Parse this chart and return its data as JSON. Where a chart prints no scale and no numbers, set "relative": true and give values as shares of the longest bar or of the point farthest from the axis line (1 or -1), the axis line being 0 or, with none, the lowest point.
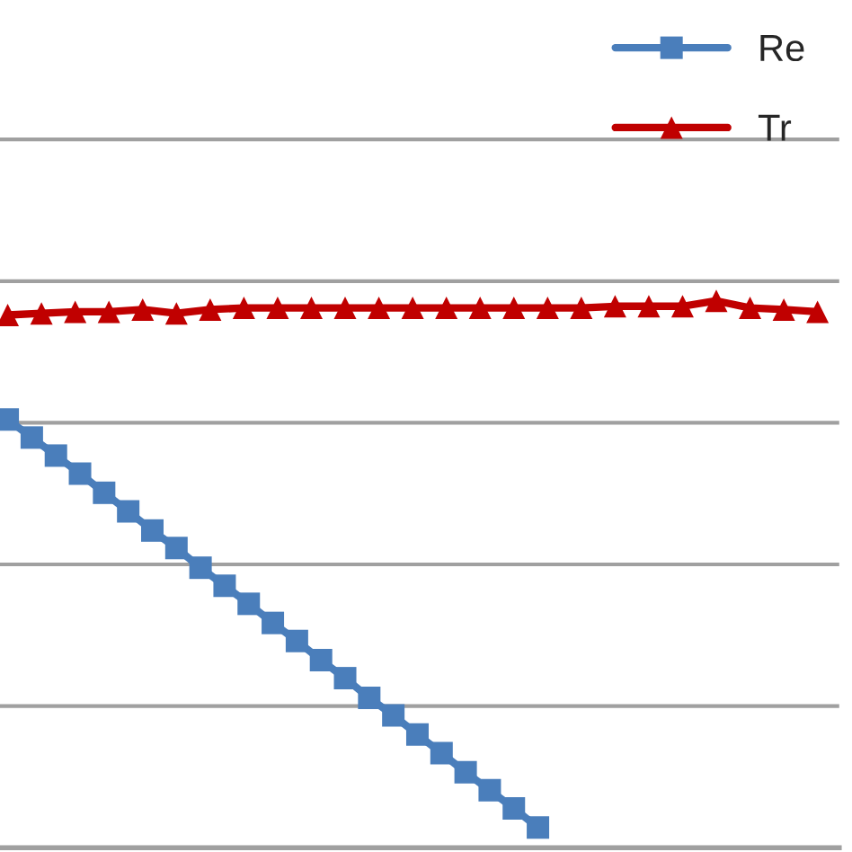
{
  "chart_data": {
    "type": "line",
    "relative": true,
    "grid": "y",
    "legend": "top right",
    "categories": [
      null,
      null,
      null,
      null,
      null,
      null,
      null,
      null,
      null,
      null,
      null,
      null,
      null,
      null,
      null,
      null,
      null,
      null,
      null,
      null,
      null,
      null,
      null,
      null,
      null,
      null,
      null,
      null,
      null,
      null,
      null,
      null,
      null,
      null,
      null,
      null,
      null,
      null,
      null,
      null,
      null,
      null,
      null,
      null,
      null,
      null,
      null,
      null,
      null,
      null,
      null,
      null,
      null,
      null,
      null,
      null,
      null,
      null,
      null,
      null,
      null,
      null,
      null,
      null,
      null,
      null,
      null,
      null,
      null,
      null,
      null,
      null,
      null,
      null,
      null,
      null,
      null,
      null,
      null,
      null,
      null,
      null,
      null,
      null,
      null,
      null,
      null,
      null,
      null,
      null,
      null,
      null,
      null,
      null,
      null,
      null,
      null,
      null,
      null,
      null,
      null,
      null,
      null,
      null,
      null,
      null,
      null,
      null,
      null,
      null,
      null,
      null,
      null,
      null,
      null,
      null,
      null,
      null,
      null,
      null,
      null,
      null,
      null,
      null,
      null,
      null,
      null,
      null,
      null,
      null,
      null,
      null,
      null,
      null,
      null,
      null,
      null,
      null,
      null,
      null,
      null,
      null,
      null,
      null,
      null,
      null,
      null,
      null,
      null,
      null,
      null,
      null,
      null,
      null,
      null,
      null,
      null,
      null,
      null,
      null,
      null,
      null,
      null,
      null,
      null,
      null,
      null,
      null,
      null
    ],
    "series": [
      {
        "name": "Re",
        "color": "#4a7ebb",
        "marker": "square",
        "values": [
          0.783,
          null,
          null,
          null,
          null,
          0.75,
          null,
          null,
          null,
          null,
          0.717,
          null,
          null,
          null,
          null,
          0.684,
          null,
          null,
          null,
          null,
          0.649,
          null,
          null,
          null,
          null,
          0.615,
          null,
          null,
          null,
          null,
          0.58,
          null,
          null,
          null,
          null,
          0.548,
          null,
          null,
          null,
          null,
          0.512,
          null,
          null,
          null,
          null,
          0.479,
          null,
          null,
          null,
          null,
          0.446,
          null,
          null,
          null,
          null,
          0.411,
          null,
          null,
          null,
          null,
          0.378,
          null,
          null,
          null,
          null,
          0.343,
          null,
          null,
          null,
          null,
          0.31,
          null,
          null,
          null,
          null,
          0.274,
          null,
          null,
          null,
          null,
          0.242,
          null,
          null,
          null,
          null,
          0.207,
          null,
          null,
          null,
          null,
          0.173,
          null,
          null,
          null,
          null,
          0.138,
          null,
          null,
          null,
          null,
          0.105,
          null,
          null,
          null,
          null,
          0.072,
          null,
          null,
          null,
          null,
          0.037,
          null,
          null,
          null,
          null,
          null,
          null,
          null,
          null,
          null,
          null,
          null,
          null,
          null,
          null,
          null,
          null,
          null,
          null,
          null,
          null,
          null,
          null,
          null,
          null,
          null,
          null,
          null,
          null,
          null,
          null,
          null,
          null,
          null,
          null,
          null,
          null,
          null,
          null,
          null,
          null,
          null,
          null,
          null,
          null,
          null,
          null,
          null,
          null,
          null,
          null,
          null,
          null,
          null,
          null,
          null,
          null,
          null,
          null
        ]
      },
      {
        "name": "Tr",
        "color": "#c00000",
        "marker": "triangle",
        "values": [
          0.974,
          null,
          null,
          null,
          null,
          null,
          null,
          0.977,
          null,
          null,
          null,
          null,
          null,
          null,
          0.98,
          null,
          null,
          null,
          null,
          null,
          null,
          0.98,
          null,
          null,
          null,
          null,
          null,
          null,
          0.984,
          null,
          null,
          null,
          null,
          null,
          null,
          0.977,
          null,
          null,
          null,
          null,
          null,
          null,
          0.984,
          null,
          null,
          null,
          null,
          null,
          null,
          0.987,
          null,
          null,
          null,
          null,
          null,
          null,
          0.987,
          null,
          null,
          null,
          null,
          null,
          null,
          0.987,
          null,
          null,
          null,
          null,
          null,
          null,
          0.987,
          null,
          null,
          null,
          null,
          null,
          null,
          0.987,
          null,
          null,
          null,
          null,
          null,
          null,
          0.987,
          null,
          null,
          null,
          null,
          null,
          null,
          0.987,
          null,
          null,
          null,
          null,
          null,
          null,
          0.987,
          null,
          null,
          null,
          null,
          null,
          null,
          0.987,
          null,
          null,
          null,
          null,
          null,
          null,
          0.987,
          null,
          null,
          null,
          null,
          null,
          null,
          0.987,
          null,
          null,
          null,
          null,
          null,
          null,
          0.99,
          null,
          null,
          null,
          null,
          null,
          null,
          0.99,
          null,
          null,
          null,
          null,
          null,
          null,
          0.99,
          null,
          null,
          null,
          null,
          null,
          null,
          1,
          null,
          null,
          null,
          null,
          null,
          null,
          0.987,
          null,
          null,
          null,
          null,
          null,
          null,
          0.984,
          null,
          null,
          null,
          null,
          null,
          null,
          0.98
        ]
      }
    ]
  }
}
